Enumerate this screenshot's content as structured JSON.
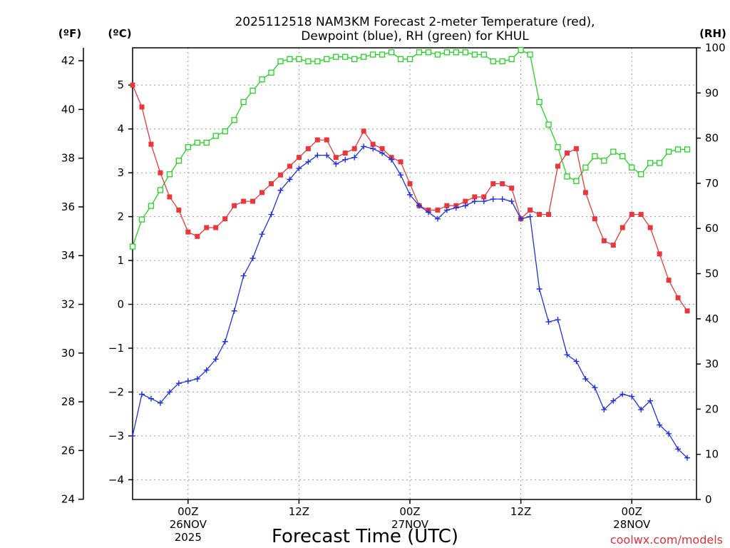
{
  "chart_data": {
    "type": "line",
    "title_line1": "2025112518 NAM3KM Forecast 2-meter Temperature (red),",
    "title_line2": "Dewpoint (blue), RH (green) for KHUL",
    "xlabel": "Forecast Time (UTC)",
    "credit": "coolwx.com/models",
    "unit_f": "(ºF)",
    "unit_c": "(ºC)",
    "unit_rh": "(RH)",
    "x_hours_range": [
      0,
      61
    ],
    "x_ticks": [
      {
        "hour": 6,
        "lines": [
          "00Z",
          "26NOV",
          "2025"
        ]
      },
      {
        "hour": 18,
        "lines": [
          "12Z"
        ]
      },
      {
        "hour": 30,
        "lines": [
          "00Z",
          "27NOV"
        ]
      },
      {
        "hour": 42,
        "lines": [
          "12Z"
        ]
      },
      {
        "hour": 54,
        "lines": [
          "00Z",
          "28NOV"
        ]
      }
    ],
    "axis_f": {
      "ticks": [
        24,
        26,
        28,
        30,
        32,
        34,
        36,
        38,
        40,
        42
      ]
    },
    "axis_c": {
      "range": [
        -4.45,
        5.85
      ],
      "ticks": [
        -4,
        -3,
        -2,
        -1,
        0,
        1,
        2,
        3,
        4,
        5
      ]
    },
    "axis_rh": {
      "range": [
        0,
        100
      ],
      "ticks": [
        0,
        10,
        20,
        30,
        40,
        50,
        60,
        70,
        80,
        90,
        100
      ]
    },
    "series": [
      {
        "name": "2-meter Temperature",
        "color": "#e8383c",
        "marker": "filled-square",
        "axis": "C",
        "values": [
          5.0,
          4.5,
          3.65,
          3.0,
          2.45,
          2.15,
          1.65,
          1.55,
          1.75,
          1.75,
          1.95,
          2.25,
          2.35,
          2.35,
          2.55,
          2.75,
          2.95,
          3.15,
          3.35,
          3.55,
          3.75,
          3.75,
          3.35,
          3.45,
          3.55,
          3.95,
          3.65,
          3.55,
          3.35,
          3.25,
          2.75,
          2.25,
          2.15,
          2.15,
          2.25,
          2.25,
          2.35,
          2.45,
          2.45,
          2.75,
          2.75,
          2.65,
          1.95,
          2.15,
          2.05,
          2.05,
          3.15,
          3.45,
          3.55,
          2.55,
          1.95,
          1.45,
          1.35,
          1.75,
          2.05,
          2.05,
          1.75,
          1.15,
          0.55,
          0.15,
          -0.15
        ]
      },
      {
        "name": "Dewpoint",
        "color": "#2030e0",
        "marker": "plus",
        "axis": "C",
        "values": [
          -3.0,
          -2.05,
          -2.15,
          -2.25,
          -2.0,
          -1.8,
          -1.75,
          -1.7,
          -1.5,
          -1.25,
          -0.85,
          -0.15,
          0.65,
          1.05,
          1.6,
          2.05,
          2.6,
          2.85,
          3.1,
          3.25,
          3.4,
          3.4,
          3.2,
          3.3,
          3.35,
          3.6,
          3.55,
          3.45,
          3.3,
          2.95,
          2.5,
          2.25,
          2.1,
          1.95,
          2.15,
          2.2,
          2.25,
          2.35,
          2.35,
          2.4,
          2.4,
          2.35,
          1.95,
          2.0,
          0.35,
          -0.4,
          -0.35,
          -1.15,
          -1.3,
          -1.7,
          -1.9,
          -2.4,
          -2.2,
          -2.05,
          -2.1,
          -2.4,
          -2.2,
          -2.75,
          -2.95,
          -3.3,
          -3.5
        ]
      },
      {
        "name": "RH",
        "color": "#22d322",
        "marker": "open-square",
        "axis": "RH",
        "values": [
          56,
          62,
          65,
          68.5,
          72,
          75,
          78,
          79,
          79,
          80.5,
          81.5,
          84,
          88,
          90.5,
          93,
          94.5,
          97,
          97.5,
          97.5,
          97,
          97,
          97.5,
          98,
          98,
          97.5,
          98,
          98.5,
          98.5,
          99,
          97.5,
          97.5,
          99,
          99,
          98.5,
          99,
          99,
          99,
          98.5,
          98.5,
          97,
          97,
          97.5,
          99.5,
          98.5,
          88,
          83,
          78,
          71.5,
          70.5,
          73.5,
          76,
          75,
          77,
          76,
          73.5,
          72,
          74.5,
          74.5,
          77,
          77.5,
          77.5
        ]
      }
    ]
  }
}
